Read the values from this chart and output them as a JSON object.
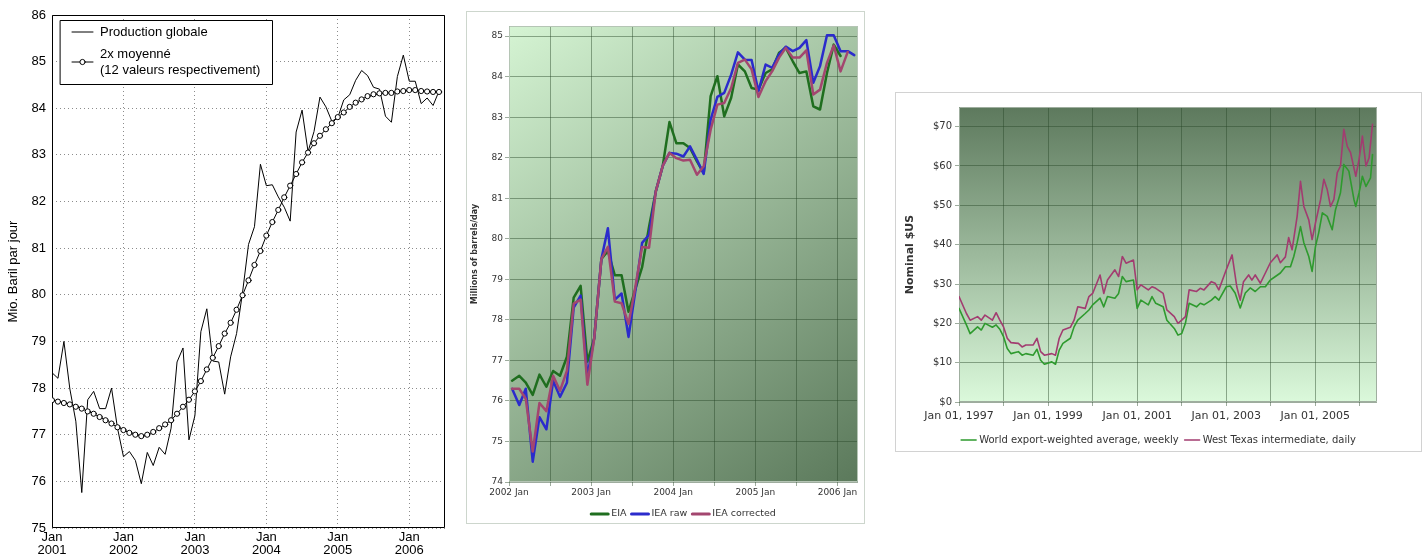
{
  "chart_data": [
    {
      "type": "line",
      "x": [
        "2001-01",
        "2001-02",
        "2001-03",
        "2001-04",
        "2001-05",
        "2001-06",
        "2001-07",
        "2001-08",
        "2001-09",
        "2001-10",
        "2001-11",
        "2001-12",
        "2002-01",
        "2002-02",
        "2002-03",
        "2002-04",
        "2002-05",
        "2002-06",
        "2002-07",
        "2002-08",
        "2002-09",
        "2002-10",
        "2002-11",
        "2002-12",
        "2003-01",
        "2003-02",
        "2003-03",
        "2003-04",
        "2003-05",
        "2003-06",
        "2003-07",
        "2003-08",
        "2003-09",
        "2003-10",
        "2003-11",
        "2003-12",
        "2004-01",
        "2004-02",
        "2004-03",
        "2004-04",
        "2004-05",
        "2004-06",
        "2004-07",
        "2004-08",
        "2004-09",
        "2004-10",
        "2004-11",
        "2004-12",
        "2005-01",
        "2005-02",
        "2005-03",
        "2005-04",
        "2005-05",
        "2005-06",
        "2005-07",
        "2005-08",
        "2005-09",
        "2005-10",
        "2005-11",
        "2005-12",
        "2006-01",
        "2006-02",
        "2006-03",
        "2006-04",
        "2006-05",
        "2006-06"
      ],
      "series": [
        {
          "name": "Production globale",
          "color": "#000000",
          "marker": "none",
          "values": [
            78.33,
            78.21,
            79.0,
            77.98,
            77.29,
            75.76,
            77.75,
            77.93,
            77.56,
            77.56,
            78.0,
            77.14,
            76.53,
            76.64,
            76.45,
            75.95,
            76.62,
            76.34,
            76.73,
            76.58,
            77.14,
            78.56,
            78.86,
            76.89,
            77.41,
            79.21,
            79.7,
            78.58,
            78.56,
            77.87,
            78.67,
            79.17,
            80.05,
            81.08,
            81.46,
            82.8,
            82.34,
            82.36,
            82.1,
            81.88,
            81.58,
            83.49,
            83.96,
            83.07,
            83.5,
            84.24,
            84.03,
            83.72,
            83.8,
            84.18,
            84.29,
            84.6,
            84.81,
            84.7,
            84.45,
            84.41,
            83.83,
            83.7,
            84.68,
            85.14,
            84.58,
            84.58,
            84.1,
            84.22,
            84.06,
            84.37
          ]
        },
        {
          "name": "2x moyenné\n(12 valeurs respectivement)",
          "color": "#000000",
          "marker": "circle",
          "values": [
            77.74,
            77.71,
            77.68,
            77.65,
            77.6,
            77.56,
            77.5,
            77.45,
            77.38,
            77.31,
            77.24,
            77.16,
            77.1,
            77.04,
            77.0,
            76.97,
            77.0,
            77.06,
            77.14,
            77.22,
            77.31,
            77.45,
            77.6,
            77.75,
            77.93,
            78.15,
            78.4,
            78.65,
            78.9,
            79.17,
            79.4,
            79.68,
            79.99,
            80.31,
            80.64,
            80.94,
            81.27,
            81.56,
            81.82,
            82.09,
            82.34,
            82.59,
            82.84,
            83.05,
            83.25,
            83.41,
            83.55,
            83.68,
            83.81,
            83.91,
            84.03,
            84.12,
            84.19,
            84.26,
            84.3,
            84.32,
            84.33,
            84.33,
            84.36,
            84.37,
            84.39,
            84.39,
            84.37,
            84.36,
            84.35,
            84.35
          ]
        }
      ],
      "ylabel": "Mio. Baril par jour",
      "xlim": [
        "2001-01",
        "2006-07"
      ],
      "xticks": [
        {
          "value": "2001-01",
          "label": "Jan\n2001"
        },
        {
          "value": "2002-01",
          "label": "Jan\n2002"
        },
        {
          "value": "2003-01",
          "label": "Jan\n2003"
        },
        {
          "value": "2004-01",
          "label": "Jan\n2004"
        },
        {
          "value": "2005-01",
          "label": "Jan\n2005"
        },
        {
          "value": "2006-01",
          "label": "Jan\n2006"
        }
      ],
      "ylim": [
        75,
        86
      ],
      "yticks": [
        75,
        76,
        77,
        78,
        79,
        80,
        81,
        82,
        83,
        84,
        85,
        86
      ],
      "grid": true,
      "legend": "top left"
    },
    {
      "type": "line",
      "x": [
        "2002-01-15",
        "2002-02-15",
        "2002-03-15",
        "2002-04-15",
        "2002-05-15",
        "2002-06-15",
        "2002-07-15",
        "2002-08-15",
        "2002-09-15",
        "2002-10-15",
        "2002-11-15",
        "2002-12-15",
        "2003-01-15",
        "2003-02-15",
        "2003-03-15",
        "2003-04-15",
        "2003-05-15",
        "2003-06-15",
        "2003-07-15",
        "2003-08-15",
        "2003-09-15",
        "2003-10-15",
        "2003-11-15",
        "2003-12-15",
        "2004-01-15",
        "2004-02-15",
        "2004-03-15",
        "2004-04-15",
        "2004-05-15",
        "2004-06-15",
        "2004-07-15",
        "2004-08-15",
        "2004-09-15",
        "2004-10-15",
        "2004-11-15",
        "2004-12-15",
        "2005-01-15",
        "2005-02-15",
        "2005-03-15",
        "2005-04-15",
        "2005-05-15",
        "2005-06-15",
        "2005-07-15",
        "2005-08-15",
        "2005-09-15",
        "2005-10-15",
        "2005-11-15",
        "2005-12-15",
        "2006-01-15",
        "2006-02-15",
        "2006-03-15"
      ],
      "series": [
        {
          "name": "EIA",
          "color": "#1f6e1f",
          "values": [
            76.5,
            76.62,
            76.45,
            76.15,
            76.65,
            76.35,
            76.74,
            76.62,
            77.09,
            78.55,
            78.84,
            76.97,
            77.54,
            79.5,
            79.7,
            79.1,
            79.1,
            78.2,
            78.75,
            79.3,
            80.3,
            81.17,
            81.8,
            82.88,
            82.36,
            82.36,
            82.24,
            81.91,
            81.62,
            83.52,
            84.01,
            83.02,
            83.48,
            84.3,
            84.13,
            83.72,
            83.68,
            84.09,
            84.18,
            84.59,
            84.71,
            84.38,
            84.09,
            84.13,
            83.27,
            83.19,
            84.09,
            84.79,
            84.51,
            null,
            null
          ]
        },
        {
          "name": "IEA raw",
          "color": "#2b2bcc",
          "values": [
            76.3,
            75.9,
            76.3,
            74.5,
            75.6,
            75.3,
            76.5,
            76.1,
            76.45,
            78.3,
            78.6,
            76.6,
            77.55,
            79.5,
            80.26,
            78.5,
            78.65,
            77.58,
            78.7,
            79.9,
            80.1,
            81.17,
            81.8,
            82.12,
            82.1,
            82.03,
            82.28,
            81.95,
            81.6,
            82.94,
            83.5,
            83.6,
            84.05,
            84.6,
            84.42,
            84.41,
            83.64,
            84.3,
            84.22,
            84.55,
            84.74,
            84.63,
            84.71,
            84.9,
            83.85,
            84.26,
            85.02,
            85.02,
            84.63,
            84.63,
            84.53
          ]
        },
        {
          "name": "IEA corrected",
          "color": "#a3466f",
          "values": [
            76.3,
            76.3,
            76.05,
            74.75,
            75.95,
            75.75,
            76.62,
            76.25,
            76.75,
            78.4,
            78.5,
            76.4,
            77.54,
            79.5,
            79.8,
            78.45,
            78.41,
            77.9,
            78.8,
            79.8,
            79.78,
            81.17,
            81.8,
            82.12,
            81.99,
            81.93,
            81.95,
            81.58,
            81.79,
            82.69,
            83.31,
            83.35,
            83.72,
            84.34,
            84.42,
            84.18,
            83.5,
            83.89,
            84.13,
            84.47,
            84.71,
            84.47,
            84.47,
            84.65,
            83.56,
            83.68,
            84.34,
            84.77,
            84.13,
            84.61,
            null
          ]
        }
      ],
      "ylabel": "Millions of barrels/day",
      "xlim": [
        "2002-01",
        "2006-04"
      ],
      "xticks": [
        {
          "value": "2002-01",
          "label": "2002 Jan"
        },
        {
          "value": "2002-07",
          "label": null
        },
        {
          "value": "2003-01",
          "label": "2003 Jan"
        },
        {
          "value": "2003-07",
          "label": null
        },
        {
          "value": "2004-01",
          "label": "2004 Jan"
        },
        {
          "value": "2004-07",
          "label": null
        },
        {
          "value": "2005-01",
          "label": "2005 Jan"
        },
        {
          "value": "2005-07",
          "label": null
        },
        {
          "value": "2006-01",
          "label": "2006 Jan"
        }
      ],
      "ylim": [
        74,
        85.25
      ],
      "yticks": [
        74,
        75,
        76,
        77,
        78,
        79,
        80,
        81,
        82,
        83,
        84,
        85
      ],
      "grid": true,
      "legend": "bottom"
    },
    {
      "type": "line",
      "series": [
        {
          "name": "World export-weighted average, weekly",
          "color": "#2e9a2e",
          "x": [
            "1997-01",
            "1997-03",
            "1997-04",
            "1997-06",
            "1997-07",
            "1997-08",
            "1997-10",
            "1997-11",
            "1997-12",
            "1998-01",
            "1998-02",
            "1998-03",
            "1998-05",
            "1998-06",
            "1998-07",
            "1998-09",
            "1998-10",
            "1998-11",
            "1998-12",
            "1999-02",
            "1999-03",
            "1999-04",
            "1999-05",
            "1999-07",
            "1999-08",
            "1999-09",
            "1999-11",
            "1999-12",
            "2000-01",
            "2000-03",
            "2000-04",
            "2000-05",
            "2000-07",
            "2000-08",
            "2000-09",
            "2000-10",
            "2000-12",
            "2001-01",
            "2001-02",
            "2001-04",
            "2001-05",
            "2001-06",
            "2001-08",
            "2001-09",
            "2001-11",
            "2001-12",
            "2002-01",
            "2002-02",
            "2002-03",
            "2002-05",
            "2002-06",
            "2002-07",
            "2002-09",
            "2002-10",
            "2002-11",
            "2003-01",
            "2003-02-03",
            "2003-03-13",
            "2003-04-24",
            "2003-06-05",
            "2003-07-15",
            "2003-08-26",
            "2003-10-07",
            "2003-11-17",
            "2003-12-28",
            "2004-02-08",
            "2004-03-19",
            "2004-04-29",
            "2004-06-10",
            "2004-07-07",
            "2004-08-04",
            "2004-09-01",
            "2004-09-28",
            "2004-11-08",
            "2004-12-05",
            "2005-01-02",
            "2005-01-29",
            "2005-02-26",
            "2005-04-07",
            "2005-05-18",
            "2005-06-14",
            "2005-07-25",
            "2005-08-22",
            "2005-10-02",
            "2005-11-13",
            "2005-11-28",
            "2005-12-25",
            "2006-01-22",
            "2006-02-19",
            "2006-03-28",
            "2006-04-13"
          ],
          "values": [
            23.8,
            19.6,
            17.4,
            19.1,
            18.3,
            20.0,
            19.0,
            19.6,
            18.5,
            16.6,
            13.6,
            12.3,
            12.8,
            11.9,
            12.3,
            11.9,
            13.4,
            10.6,
            9.6,
            10.2,
            9.6,
            13.2,
            14.9,
            16.2,
            19.1,
            20.8,
            22.5,
            23.4,
            24.7,
            26.4,
            24.2,
            26.8,
            26.4,
            27.6,
            31.9,
            30.6,
            31.0,
            23.8,
            25.9,
            24.7,
            26.8,
            25.1,
            24.2,
            20.8,
            18.7,
            17.0,
            17.4,
            20.0,
            25.1,
            24.2,
            25.1,
            24.7,
            25.9,
            26.8,
            25.9,
            29.3,
            29.5,
            27.7,
            23.9,
            27.7,
            29.0,
            28.1,
            29.3,
            29.3,
            31.0,
            31.9,
            32.8,
            34.4,
            34.4,
            37.0,
            40.5,
            44.6,
            40.5,
            37.0,
            33.2,
            39.5,
            43.0,
            48.1,
            47.2,
            43.8,
            48.9,
            53.2,
            60.4,
            58.7,
            51.5,
            49.7,
            53.2,
            57.4,
            54.8,
            57.0,
            62.9
          ]
        },
        {
          "name": "West Texas intermediate, daily",
          "color": "#a23c70",
          "x": [
            "1997-01",
            "1997-03",
            "1997-04",
            "1997-06",
            "1997-07",
            "1997-08",
            "1997-10",
            "1997-11",
            "1997-12",
            "1998-01",
            "1998-02",
            "1998-03",
            "1998-05",
            "1998-06",
            "1998-07",
            "1998-09",
            "1998-10",
            "1998-11",
            "1998-12",
            "1999-02",
            "1999-03",
            "1999-04",
            "1999-05",
            "1999-07",
            "1999-08",
            "1999-09",
            "1999-11",
            "1999-12",
            "2000-01",
            "2000-03",
            "2000-04",
            "2000-05",
            "2000-07",
            "2000-08",
            "2000-09",
            "2000-10",
            "2000-12",
            "2001-01",
            "2001-02",
            "2001-04",
            "2001-05",
            "2001-06",
            "2001-08",
            "2001-09",
            "2001-11",
            "2001-12",
            "2002-01",
            "2002-02",
            "2002-03",
            "2002-05",
            "2002-06",
            "2002-07",
            "2002-09",
            "2002-10",
            "2002-11",
            "2003-01",
            "2003-02-17",
            "2003-03-27",
            "2003-04-24",
            "2003-05-21",
            "2003-07-02",
            "2003-07-29",
            "2003-08-26",
            "2003-10-07",
            "2003-11-17",
            "2003-12-28",
            "2004-02-22",
            "2004-03-19",
            "2004-04-29",
            "2004-05-26",
            "2004-06-23",
            "2004-08-04",
            "2004-09-01",
            "2004-09-28",
            "2004-11-08",
            "2004-12-05",
            "2005-01-02",
            "2005-02-13",
            "2005-03-10",
            "2005-04-07",
            "2005-05-04",
            "2005-06-01",
            "2005-06-28",
            "2005-07-25",
            "2005-08-22",
            "2005-09-19",
            "2005-10-16",
            "2005-11-28",
            "2005-12-25",
            "2006-01-22",
            "2006-02-19",
            "2006-03-16",
            "2006-04-13"
          ],
          "values": [
            26.8,
            22.5,
            20.8,
            21.7,
            20.8,
            22.1,
            20.8,
            22.7,
            20.8,
            19.1,
            16.2,
            15.1,
            14.9,
            14.0,
            14.5,
            14.5,
            16.2,
            12.8,
            11.9,
            12.3,
            11.9,
            16.2,
            18.3,
            19.0,
            20.8,
            24.2,
            23.8,
            26.8,
            27.6,
            32.3,
            27.6,
            31.0,
            33.6,
            31.9,
            37.0,
            35.3,
            36.1,
            28.5,
            29.8,
            28.5,
            29.3,
            28.9,
            27.6,
            23.4,
            21.7,
            20.0,
            20.8,
            21.7,
            28.5,
            28.1,
            28.9,
            28.5,
            30.6,
            30.2,
            28.5,
            33.6,
            37.4,
            29.3,
            25.9,
            30.6,
            32.3,
            31.0,
            32.3,
            30.2,
            32.8,
            35.4,
            37.4,
            35.4,
            36.9,
            41.8,
            38.7,
            47.2,
            56.1,
            49.7,
            46.3,
            41.3,
            45.5,
            51.5,
            56.6,
            54.0,
            49.7,
            51.5,
            58.3,
            60.0,
            69.3,
            65.0,
            63.4,
            57.4,
            61.7,
            67.6,
            60.0,
            62.1,
            70.6
          ]
        }
      ],
      "ylabel": "Nominal $US",
      "xlim": [
        "1997-01-01",
        "2006-05-20"
      ],
      "xticks": [
        {
          "value": "1997-01-01",
          "label": "Jan 01, 1997"
        },
        {
          "value": "1998-01-01",
          "label": null
        },
        {
          "value": "1999-01-01",
          "label": "Jan 01, 1999"
        },
        {
          "value": "2000-01-01",
          "label": null
        },
        {
          "value": "2001-01-01",
          "label": "Jan 01, 2001"
        },
        {
          "value": "2002-01-01",
          "label": null
        },
        {
          "value": "2003-01-01",
          "label": "Jan 01, 2003"
        },
        {
          "value": "2004-01-01",
          "label": null
        },
        {
          "value": "2005-01-01",
          "label": "Jan 01, 2005"
        },
        {
          "value": "2006-01-01",
          "label": null
        }
      ],
      "ylim": [
        0,
        75
      ],
      "yticks": [
        {
          "value": 0,
          "label": "$0"
        },
        {
          "value": 10,
          "label": "$10"
        },
        {
          "value": 20,
          "label": "$20"
        },
        {
          "value": 30,
          "label": "$30"
        },
        {
          "value": 40,
          "label": "$40"
        },
        {
          "value": 50,
          "label": "$50"
        },
        {
          "value": 60,
          "label": "$60"
        },
        {
          "value": 70,
          "label": "$70"
        }
      ],
      "grid": true,
      "legend": "bottom"
    }
  ]
}
